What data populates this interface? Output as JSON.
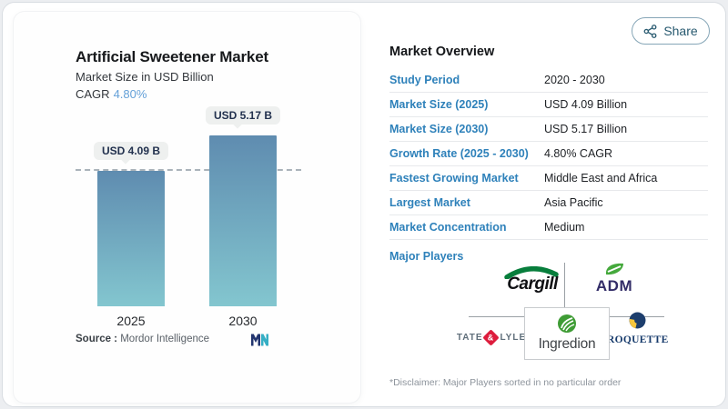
{
  "share": {
    "label": "Share"
  },
  "chart_panel": {
    "title": "Artificial Sweetener Market",
    "subtitle": "Market Size in USD Billion",
    "cagr_label": "CAGR",
    "cagr_value": "4.80%",
    "source_label": "Source :",
    "source_value": "Mordor Intelligence"
  },
  "chart_data": {
    "type": "bar",
    "title": "Artificial Sweetener Market",
    "subtitle": "Market Size in USD Billion",
    "cagr": "4.80%",
    "categories": [
      "2025",
      "2030"
    ],
    "values": [
      4.09,
      5.17
    ],
    "bar_labels": [
      "USD 4.09 B",
      "USD 5.17 B"
    ],
    "unit": "USD Billion",
    "reference_line": 4.09,
    "ylim": [
      0,
      5.17
    ],
    "grid": "off",
    "bar_gradient_top": "#5f8cb0",
    "bar_gradient_bottom": "#83c6cf"
  },
  "overview": {
    "heading": "Market Overview",
    "rows": [
      {
        "label": "Study Period",
        "value": "2020 - 2030"
      },
      {
        "label": "Market Size (2025)",
        "value": "USD 4.09 Billion"
      },
      {
        "label": "Market Size (2030)",
        "value": "USD 5.17 Billion"
      },
      {
        "label": "Growth Rate (2025 - 2030)",
        "value": "4.80% CAGR"
      },
      {
        "label": "Fastest Growing Market",
        "value": "Middle East and Africa"
      },
      {
        "label": "Largest Market",
        "value": "Asia Pacific"
      },
      {
        "label": "Market Concentration",
        "value": "Medium"
      }
    ],
    "major_players_label": "Major Players",
    "players": {
      "cargill": "Cargill",
      "adm": "ADM",
      "tate_first": "TATE",
      "tate_amp": "&",
      "tate_second": "LYLE",
      "ingredion": "Ingredion",
      "roquette": "ROQUETTE"
    },
    "disclaimer": "*Disclaimer: Major Players sorted in no particular order"
  },
  "colors": {
    "accent_blue": "#2e81ba",
    "cagr_blue": "#64a0d8",
    "pill_bg": "#eef0ef",
    "dashed_line": "#aab3ba",
    "cargill_green": "#077e3c",
    "adm_navy": "#332d68",
    "adm_green": "#45a93c",
    "tate_red": "#dd1c3c",
    "ingredion_green": "#3f9c35",
    "roquette_navy": "#1d3e6d",
    "roquette_yellow": "#f6c63d",
    "mi_navy": "#22356f",
    "mi_teal": "#35aec4",
    "share_teal": "#27596f"
  }
}
